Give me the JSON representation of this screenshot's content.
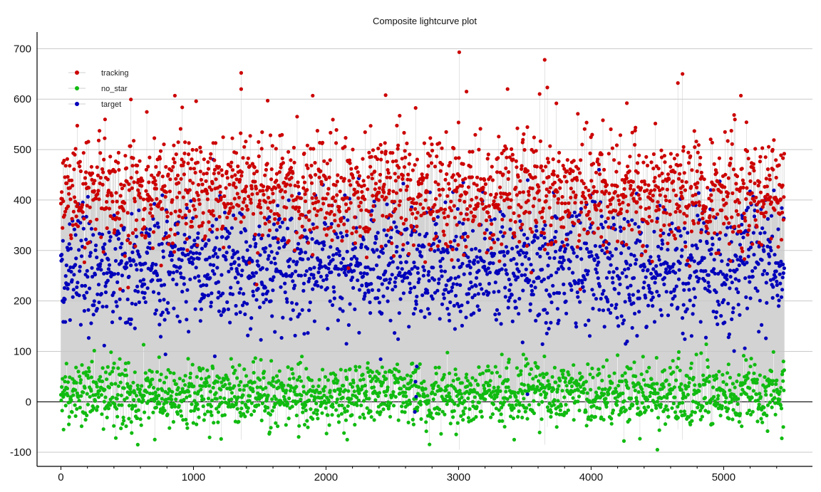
{
  "chart_data": {
    "type": "scatter",
    "title": "Composite lightcurve plot",
    "xlabel": "",
    "ylabel": "",
    "xlim": [
      -180,
      5670
    ],
    "ylim": [
      -128,
      733
    ],
    "x_ticks": [
      0,
      1000,
      2000,
      3000,
      4000,
      5000
    ],
    "y_ticks": [
      -100,
      0,
      100,
      200,
      300,
      400,
      500,
      600,
      700
    ],
    "grid": "horizontal",
    "legend_position": "top-left",
    "connecting_line_color": "#c8c8c8",
    "zero_line": true,
    "n_points": 5460,
    "series": [
      {
        "name": "tracking",
        "color": "#cc0000",
        "approx_center": 410,
        "approx_spread": 55,
        "notable_points": [
          {
            "x": 3005,
            "y": 693
          },
          {
            "x": 3650,
            "y": 678
          },
          {
            "x": 1360,
            "y": 652
          },
          {
            "x": 4690,
            "y": 650
          },
          {
            "x": 4655,
            "y": 632
          },
          {
            "x": 3670,
            "y": 623
          },
          {
            "x": 1360,
            "y": 620
          },
          {
            "x": 3370,
            "y": 620
          },
          {
            "x": 3060,
            "y": 615
          },
          {
            "x": 5130,
            "y": 607
          },
          {
            "x": 2450,
            "y": 608
          },
          {
            "x": 860,
            "y": 607
          },
          {
            "x": 1900,
            "y": 607
          },
          {
            "x": 1020,
            "y": 596
          },
          {
            "x": 4270,
            "y": 592
          },
          {
            "x": 1560,
            "y": 597
          }
        ]
      },
      {
        "name": "no_star",
        "color": "#11bb11",
        "approx_center": 15,
        "approx_spread": 30,
        "notable_points": [
          {
            "x": 4500,
            "y": -95
          },
          {
            "x": 580,
            "y": -85
          },
          {
            "x": 3420,
            "y": -75
          },
          {
            "x": 2160,
            "y": -75
          },
          {
            "x": 20,
            "y": -55
          },
          {
            "x": 5450,
            "y": -50
          }
        ]
      },
      {
        "name": "target",
        "color": "#0000bb",
        "approx_center": 265,
        "approx_spread": 60,
        "notable_points": [
          {
            "x": 2670,
            "y": -20
          },
          {
            "x": 2680,
            "y": 10
          },
          {
            "x": 2675,
            "y": 40
          },
          {
            "x": 2685,
            "y": 70
          },
          {
            "x": 3520,
            "y": 15
          },
          {
            "x": 1150,
            "y": 480
          },
          {
            "x": 4060,
            "y": 460
          }
        ]
      }
    ]
  }
}
